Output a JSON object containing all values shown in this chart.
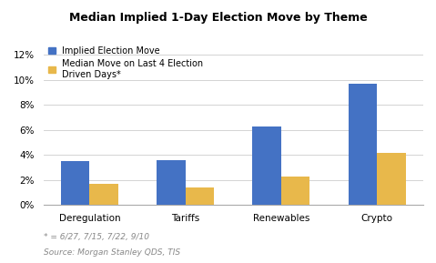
{
  "title": "Median Implied 1-Day Election Move by Theme",
  "categories": [
    "Deregulation",
    "Tariffs",
    "Renewables",
    "Crypto"
  ],
  "series1_label": "Implied Election Move",
  "series2_label": "Median Move on Last 4 Election\nDriven Days*",
  "series1_values": [
    0.035,
    0.036,
    0.063,
    0.097
  ],
  "series2_values": [
    0.017,
    0.014,
    0.023,
    0.042
  ],
  "series1_color": "#4472C4",
  "series2_color": "#E8B84B",
  "ylim": [
    0,
    0.13
  ],
  "yticks": [
    0.0,
    0.02,
    0.04,
    0.06,
    0.08,
    0.1,
    0.12
  ],
  "ytick_labels": [
    "0%",
    "2%",
    "4%",
    "6%",
    "8%",
    "10%",
    "12%"
  ],
  "footnote_line1": "* = 6/27, 7/15, 7/22, 9/10",
  "footnote_line2": "Source: Morgan Stanley QDS, TIS",
  "background_color": "#ffffff",
  "bar_width": 0.3,
  "title_fontsize": 9,
  "tick_fontsize": 7.5,
  "legend_fontsize": 7,
  "footnote_fontsize": 6.5
}
